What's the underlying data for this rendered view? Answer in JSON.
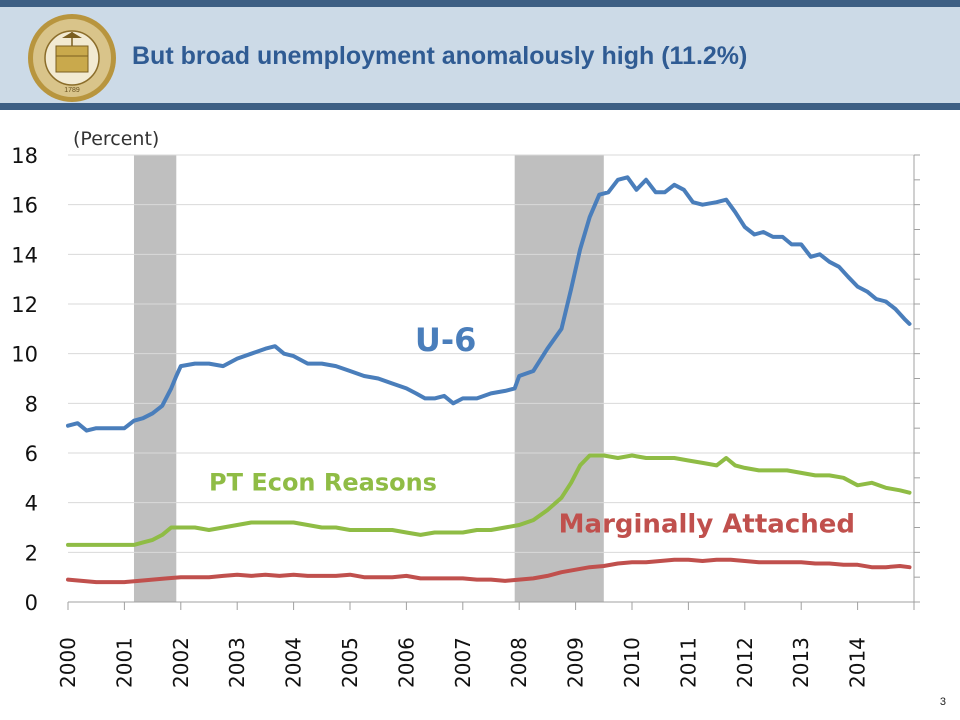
{
  "slide": {
    "title": "But broad unemployment anomalously high (11.2%)",
    "page_number": "3",
    "seal": {
      "icon": "treasury-seal-icon",
      "text_top": "THE DEPARTMENT OF THE TREASURY",
      "year": "1789"
    }
  },
  "colors": {
    "header_bar": "#3d5f84",
    "header_bg": "#ccdae7",
    "title": "#2f5b93",
    "recession": "#bfbfbf",
    "u6": "#4a7ebb",
    "pt_econ": "#8fbc45",
    "marginal": "#c0504d"
  },
  "chart_data": {
    "type": "line",
    "unit_label": "(Percent)",
    "ylim": [
      0,
      18
    ],
    "yticks": [
      0,
      2,
      4,
      6,
      8,
      10,
      12,
      14,
      16,
      18
    ],
    "xlim": [
      2000,
      2015
    ],
    "x_tick_labels": [
      "2000",
      "2001",
      "2002",
      "2003",
      "2004",
      "2005",
      "2006",
      "2007",
      "2008",
      "2009",
      "2010",
      "2011",
      "2012",
      "2013",
      "2014"
    ],
    "grid": true,
    "recessions": [
      {
        "start": 2001.17,
        "end": 2001.92
      },
      {
        "start": 2007.92,
        "end": 2009.5
      }
    ],
    "series": [
      {
        "name": "U-6",
        "color_key": "u6",
        "label_anchor": [
          2006.15,
          10.1
        ],
        "label_size": 32,
        "points": [
          [
            2000.0,
            7.1
          ],
          [
            2000.17,
            7.2
          ],
          [
            2000.33,
            6.9
          ],
          [
            2000.5,
            7.0
          ],
          [
            2000.67,
            7.0
          ],
          [
            2000.83,
            7.0
          ],
          [
            2001.0,
            7.0
          ],
          [
            2001.17,
            7.3
          ],
          [
            2001.33,
            7.4
          ],
          [
            2001.5,
            7.6
          ],
          [
            2001.67,
            7.9
          ],
          [
            2001.83,
            8.6
          ],
          [
            2001.92,
            9.1
          ],
          [
            2002.0,
            9.5
          ],
          [
            2002.25,
            9.6
          ],
          [
            2002.5,
            9.6
          ],
          [
            2002.75,
            9.5
          ],
          [
            2003.0,
            9.8
          ],
          [
            2003.25,
            10.0
          ],
          [
            2003.5,
            10.2
          ],
          [
            2003.67,
            10.3
          ],
          [
            2003.83,
            10.0
          ],
          [
            2004.0,
            9.9
          ],
          [
            2004.25,
            9.6
          ],
          [
            2004.5,
            9.6
          ],
          [
            2004.75,
            9.5
          ],
          [
            2005.0,
            9.3
          ],
          [
            2005.25,
            9.1
          ],
          [
            2005.5,
            9.0
          ],
          [
            2005.75,
            8.8
          ],
          [
            2006.0,
            8.6
          ],
          [
            2006.17,
            8.4
          ],
          [
            2006.33,
            8.2
          ],
          [
            2006.5,
            8.2
          ],
          [
            2006.67,
            8.3
          ],
          [
            2006.83,
            8.0
          ],
          [
            2007.0,
            8.2
          ],
          [
            2007.25,
            8.2
          ],
          [
            2007.5,
            8.4
          ],
          [
            2007.75,
            8.5
          ],
          [
            2007.92,
            8.6
          ],
          [
            2008.0,
            9.1
          ],
          [
            2008.25,
            9.3
          ],
          [
            2008.5,
            10.2
          ],
          [
            2008.75,
            11.0
          ],
          [
            2008.92,
            12.6
          ],
          [
            2009.08,
            14.2
          ],
          [
            2009.25,
            15.5
          ],
          [
            2009.42,
            16.4
          ],
          [
            2009.58,
            16.5
          ],
          [
            2009.75,
            17.0
          ],
          [
            2009.92,
            17.1
          ],
          [
            2010.08,
            16.6
          ],
          [
            2010.25,
            17.0
          ],
          [
            2010.42,
            16.5
          ],
          [
            2010.58,
            16.5
          ],
          [
            2010.75,
            16.8
          ],
          [
            2010.92,
            16.6
          ],
          [
            2011.08,
            16.1
          ],
          [
            2011.25,
            16.0
          ],
          [
            2011.5,
            16.1
          ],
          [
            2011.67,
            16.2
          ],
          [
            2011.83,
            15.7
          ],
          [
            2012.0,
            15.1
          ],
          [
            2012.17,
            14.8
          ],
          [
            2012.33,
            14.9
          ],
          [
            2012.5,
            14.7
          ],
          [
            2012.67,
            14.7
          ],
          [
            2012.83,
            14.4
          ],
          [
            2013.0,
            14.4
          ],
          [
            2013.17,
            13.9
          ],
          [
            2013.33,
            14.0
          ],
          [
            2013.5,
            13.7
          ],
          [
            2013.67,
            13.5
          ],
          [
            2013.83,
            13.1
          ],
          [
            2014.0,
            12.7
          ],
          [
            2014.17,
            12.5
          ],
          [
            2014.33,
            12.2
          ],
          [
            2014.5,
            12.1
          ],
          [
            2014.67,
            11.8
          ],
          [
            2014.83,
            11.4
          ],
          [
            2014.92,
            11.2
          ]
        ]
      },
      {
        "name": "PT Econ Reasons",
        "color_key": "pt_econ",
        "label_anchor": [
          2002.5,
          4.5
        ],
        "label_size": 24,
        "points": [
          [
            2000.0,
            2.3
          ],
          [
            2000.25,
            2.3
          ],
          [
            2000.5,
            2.3
          ],
          [
            2000.75,
            2.3
          ],
          [
            2001.0,
            2.3
          ],
          [
            2001.17,
            2.3
          ],
          [
            2001.33,
            2.4
          ],
          [
            2001.5,
            2.5
          ],
          [
            2001.67,
            2.7
          ],
          [
            2001.83,
            3.0
          ],
          [
            2002.0,
            3.0
          ],
          [
            2002.25,
            3.0
          ],
          [
            2002.5,
            2.9
          ],
          [
            2002.75,
            3.0
          ],
          [
            2003.0,
            3.1
          ],
          [
            2003.25,
            3.2
          ],
          [
            2003.5,
            3.2
          ],
          [
            2003.75,
            3.2
          ],
          [
            2004.0,
            3.2
          ],
          [
            2004.25,
            3.1
          ],
          [
            2004.5,
            3.0
          ],
          [
            2004.75,
            3.0
          ],
          [
            2005.0,
            2.9
          ],
          [
            2005.25,
            2.9
          ],
          [
            2005.5,
            2.9
          ],
          [
            2005.75,
            2.9
          ],
          [
            2006.0,
            2.8
          ],
          [
            2006.25,
            2.7
          ],
          [
            2006.5,
            2.8
          ],
          [
            2006.75,
            2.8
          ],
          [
            2007.0,
            2.8
          ],
          [
            2007.25,
            2.9
          ],
          [
            2007.5,
            2.9
          ],
          [
            2007.75,
            3.0
          ],
          [
            2008.0,
            3.1
          ],
          [
            2008.25,
            3.3
          ],
          [
            2008.5,
            3.7
          ],
          [
            2008.75,
            4.2
          ],
          [
            2008.92,
            4.8
          ],
          [
            2009.08,
            5.5
          ],
          [
            2009.25,
            5.9
          ],
          [
            2009.5,
            5.9
          ],
          [
            2009.75,
            5.8
          ],
          [
            2010.0,
            5.9
          ],
          [
            2010.25,
            5.8
          ],
          [
            2010.5,
            5.8
          ],
          [
            2010.75,
            5.8
          ],
          [
            2011.0,
            5.7
          ],
          [
            2011.25,
            5.6
          ],
          [
            2011.5,
            5.5
          ],
          [
            2011.67,
            5.8
          ],
          [
            2011.83,
            5.5
          ],
          [
            2012.0,
            5.4
          ],
          [
            2012.25,
            5.3
          ],
          [
            2012.5,
            5.3
          ],
          [
            2012.75,
            5.3
          ],
          [
            2013.0,
            5.2
          ],
          [
            2013.25,
            5.1
          ],
          [
            2013.5,
            5.1
          ],
          [
            2013.75,
            5.0
          ],
          [
            2014.0,
            4.7
          ],
          [
            2014.25,
            4.8
          ],
          [
            2014.5,
            4.6
          ],
          [
            2014.75,
            4.5
          ],
          [
            2014.92,
            4.4
          ]
        ]
      },
      {
        "name": "Marginally Attached",
        "color_key": "marginal",
        "label_anchor": [
          2008.7,
          2.8
        ],
        "label_size": 26,
        "points": [
          [
            2000.0,
            0.9
          ],
          [
            2000.25,
            0.85
          ],
          [
            2000.5,
            0.8
          ],
          [
            2000.75,
            0.8
          ],
          [
            2001.0,
            0.8
          ],
          [
            2001.25,
            0.85
          ],
          [
            2001.5,
            0.9
          ],
          [
            2001.75,
            0.95
          ],
          [
            2002.0,
            1.0
          ],
          [
            2002.25,
            1.0
          ],
          [
            2002.5,
            1.0
          ],
          [
            2002.75,
            1.05
          ],
          [
            2003.0,
            1.1
          ],
          [
            2003.25,
            1.05
          ],
          [
            2003.5,
            1.1
          ],
          [
            2003.75,
            1.05
          ],
          [
            2004.0,
            1.1
          ],
          [
            2004.25,
            1.05
          ],
          [
            2004.5,
            1.05
          ],
          [
            2004.75,
            1.05
          ],
          [
            2005.0,
            1.1
          ],
          [
            2005.25,
            1.0
          ],
          [
            2005.5,
            1.0
          ],
          [
            2005.75,
            1.0
          ],
          [
            2006.0,
            1.05
          ],
          [
            2006.25,
            0.95
          ],
          [
            2006.5,
            0.95
          ],
          [
            2006.75,
            0.95
          ],
          [
            2007.0,
            0.95
          ],
          [
            2007.25,
            0.9
          ],
          [
            2007.5,
            0.9
          ],
          [
            2007.75,
            0.85
          ],
          [
            2008.0,
            0.9
          ],
          [
            2008.25,
            0.95
          ],
          [
            2008.5,
            1.05
          ],
          [
            2008.75,
            1.2
          ],
          [
            2009.0,
            1.3
          ],
          [
            2009.25,
            1.4
          ],
          [
            2009.5,
            1.45
          ],
          [
            2009.75,
            1.55
          ],
          [
            2010.0,
            1.6
          ],
          [
            2010.25,
            1.6
          ],
          [
            2010.5,
            1.65
          ],
          [
            2010.75,
            1.7
          ],
          [
            2011.0,
            1.7
          ],
          [
            2011.25,
            1.65
          ],
          [
            2011.5,
            1.7
          ],
          [
            2011.75,
            1.7
          ],
          [
            2012.0,
            1.65
          ],
          [
            2012.25,
            1.6
          ],
          [
            2012.5,
            1.6
          ],
          [
            2012.75,
            1.6
          ],
          [
            2013.0,
            1.6
          ],
          [
            2013.25,
            1.55
          ],
          [
            2013.5,
            1.55
          ],
          [
            2013.75,
            1.5
          ],
          [
            2014.0,
            1.5
          ],
          [
            2014.25,
            1.4
          ],
          [
            2014.5,
            1.4
          ],
          [
            2014.75,
            1.45
          ],
          [
            2014.92,
            1.4
          ]
        ]
      }
    ]
  }
}
